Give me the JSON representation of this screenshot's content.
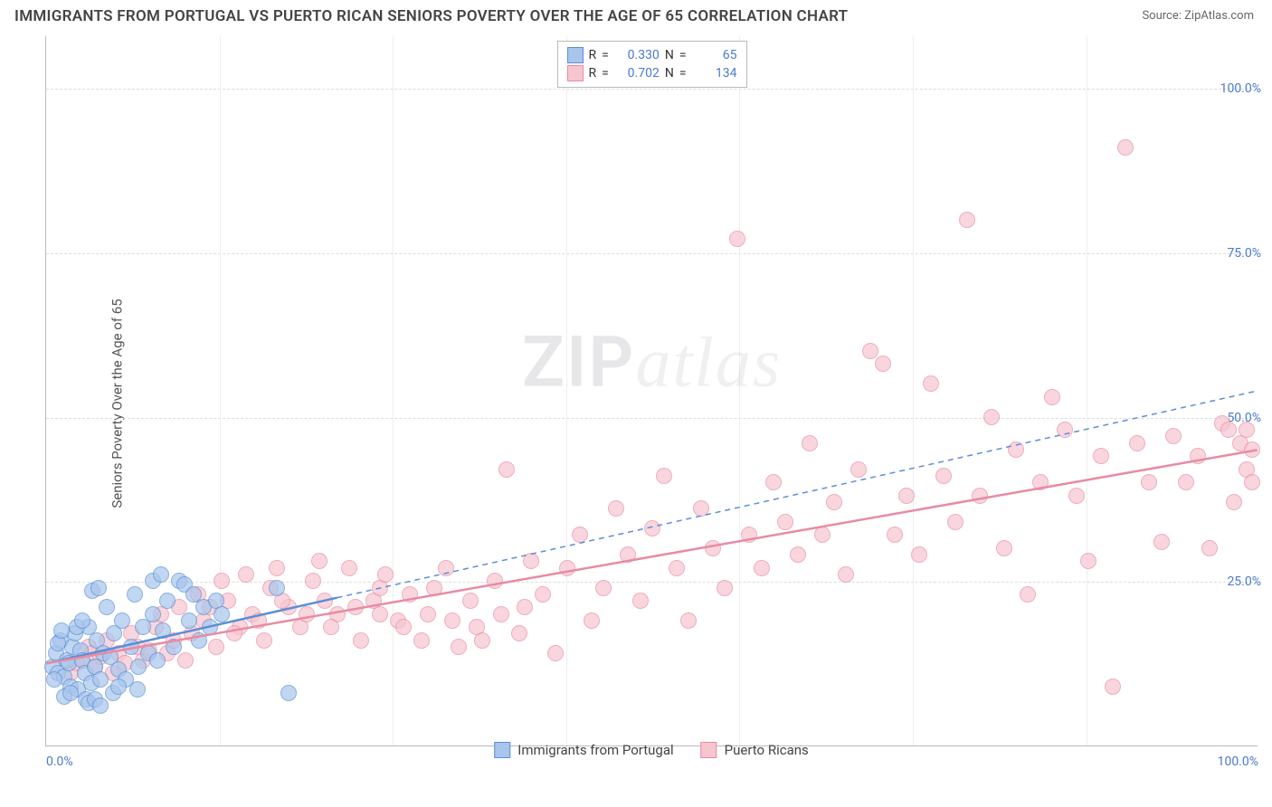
{
  "title": "IMMIGRANTS FROM PORTUGAL VS PUERTO RICAN SENIORS POVERTY OVER THE AGE OF 65 CORRELATION CHART",
  "source_label": "Source:",
  "source_name": "ZipAtlas.com",
  "y_axis_label": "Seniors Poverty Over the Age of 65",
  "watermark_zip": "ZIP",
  "watermark_atlas": "atlas",
  "chart": {
    "type": "scatter",
    "xlim": [
      0,
      100
    ],
    "ylim": [
      0,
      108
    ],
    "y_ticks": [
      25,
      50,
      75,
      100
    ],
    "y_tick_labels": [
      "25.0%",
      "50.0%",
      "75.0%",
      "100.0%"
    ],
    "x_ticks": [
      0,
      100
    ],
    "x_tick_labels": [
      "0.0%",
      "100.0%"
    ],
    "x_gridlines": [
      14.3,
      28.6,
      42.9,
      57.2,
      71.5,
      85.8
    ],
    "background_color": "#ffffff",
    "grid_color": "#dddddd",
    "point_radius": 9,
    "point_border_width": 1.2,
    "point_fill_opacity": 0.35,
    "series": [
      {
        "name": "Immigrants from Portugal",
        "color_fill": "#a8c5ec",
        "color_border": "#5a8fd6",
        "r_value": "0.330",
        "n_value": "65",
        "trend_solid": {
          "x1": 0,
          "y1": 12.5,
          "x2": 24,
          "y2": 22.5
        },
        "trend_dash": {
          "x1": 24,
          "y1": 22.5,
          "x2": 100,
          "y2": 54
        },
        "points": [
          [
            0.5,
            12
          ],
          [
            0.8,
            14
          ],
          [
            1.0,
            11
          ],
          [
            1.2,
            16
          ],
          [
            1.5,
            10.5
          ],
          [
            1.7,
            13
          ],
          [
            1.9,
            12.5
          ],
          [
            2.0,
            9
          ],
          [
            2.2,
            15
          ],
          [
            2.4,
            17
          ],
          [
            2.6,
            8.5
          ],
          [
            2.8,
            14.5
          ],
          [
            3.0,
            13
          ],
          [
            3.2,
            11
          ],
          [
            3.5,
            18
          ],
          [
            3.7,
            9.5
          ],
          [
            4.0,
            12
          ],
          [
            4.2,
            16
          ],
          [
            4.5,
            10
          ],
          [
            4.7,
            14
          ],
          [
            5.0,
            21
          ],
          [
            5.3,
            13.5
          ],
          [
            5.6,
            17
          ],
          [
            6.0,
            11.5
          ],
          [
            6.3,
            19
          ],
          [
            6.6,
            10
          ],
          [
            7.0,
            15
          ],
          [
            7.3,
            23
          ],
          [
            7.6,
            12
          ],
          [
            8.0,
            18
          ],
          [
            8.4,
            14
          ],
          [
            8.8,
            20
          ],
          [
            9.2,
            13
          ],
          [
            9.6,
            17.5
          ],
          [
            10.0,
            22
          ],
          [
            10.5,
            15
          ],
          [
            11.0,
            25
          ],
          [
            11.4,
            24.5
          ],
          [
            11.8,
            19
          ],
          [
            12.2,
            23
          ],
          [
            12.6,
            16
          ],
          [
            13.0,
            21
          ],
          [
            3.3,
            7
          ],
          [
            3.5,
            6.5
          ],
          [
            4.0,
            7
          ],
          [
            4.5,
            6
          ],
          [
            1.5,
            7.5
          ],
          [
            2.0,
            8
          ],
          [
            5.5,
            8
          ],
          [
            6.0,
            9
          ],
          [
            7.5,
            8.5
          ],
          [
            2.5,
            18
          ],
          [
            3.0,
            19
          ],
          [
            3.8,
            23.5
          ],
          [
            4.3,
            24
          ],
          [
            8.8,
            25
          ],
          [
            9.5,
            26
          ],
          [
            13.5,
            18
          ],
          [
            14.0,
            22
          ],
          [
            14.5,
            20
          ],
          [
            19.0,
            24
          ],
          [
            20.0,
            8
          ],
          [
            1.0,
            15.5
          ],
          [
            1.3,
            17.5
          ],
          [
            0.7,
            10
          ]
        ]
      },
      {
        "name": "Puerto Ricans",
        "color_fill": "#f7c5d0",
        "color_border": "#e88ba3",
        "r_value": "0.702",
        "n_value": "134",
        "trend_solid": {
          "x1": 0,
          "y1": 12.5,
          "x2": 100,
          "y2": 45
        },
        "trend_dash": null,
        "points": [
          [
            2,
            11
          ],
          [
            3,
            13
          ],
          [
            3.5,
            15
          ],
          [
            4,
            12
          ],
          [
            5,
            16
          ],
          [
            5.5,
            11
          ],
          [
            6,
            14
          ],
          [
            7,
            17
          ],
          [
            7.5,
            15
          ],
          [
            8,
            13
          ],
          [
            9,
            18
          ],
          [
            9.5,
            20
          ],
          [
            10,
            14
          ],
          [
            11,
            21
          ],
          [
            12,
            17
          ],
          [
            12.5,
            23
          ],
          [
            13,
            19
          ],
          [
            14,
            15
          ],
          [
            14.5,
            25
          ],
          [
            15,
            22
          ],
          [
            16,
            18
          ],
          [
            16.5,
            26
          ],
          [
            17,
            20
          ],
          [
            18,
            16
          ],
          [
            18.5,
            24
          ],
          [
            19,
            27
          ],
          [
            20,
            21
          ],
          [
            21,
            18
          ],
          [
            22,
            25
          ],
          [
            22.5,
            28
          ],
          [
            23,
            22
          ],
          [
            24,
            20
          ],
          [
            25,
            27
          ],
          [
            26,
            16
          ],
          [
            27,
            22
          ],
          [
            27.5,
            24
          ],
          [
            28,
            26
          ],
          [
            29,
            19
          ],
          [
            30,
            23
          ],
          [
            31,
            16
          ],
          [
            32,
            24
          ],
          [
            33,
            27
          ],
          [
            34,
            15
          ],
          [
            35,
            22
          ],
          [
            36,
            16
          ],
          [
            37,
            25
          ],
          [
            38,
            42
          ],
          [
            39,
            17
          ],
          [
            40,
            28
          ],
          [
            41,
            23
          ],
          [
            42,
            14
          ],
          [
            43,
            27
          ],
          [
            44,
            32
          ],
          [
            45,
            19
          ],
          [
            46,
            24
          ],
          [
            47,
            36
          ],
          [
            48,
            29
          ],
          [
            49,
            22
          ],
          [
            50,
            33
          ],
          [
            51,
            41
          ],
          [
            52,
            27
          ],
          [
            53,
            19
          ],
          [
            54,
            36
          ],
          [
            55,
            30
          ],
          [
            56,
            24
          ],
          [
            57,
            77
          ],
          [
            58,
            32
          ],
          [
            59,
            27
          ],
          [
            60,
            40
          ],
          [
            61,
            34
          ],
          [
            62,
            29
          ],
          [
            63,
            46
          ],
          [
            64,
            32
          ],
          [
            65,
            37
          ],
          [
            66,
            26
          ],
          [
            67,
            42
          ],
          [
            68,
            60
          ],
          [
            69,
            58
          ],
          [
            70,
            32
          ],
          [
            71,
            38
          ],
          [
            72,
            29
          ],
          [
            73,
            55
          ],
          [
            74,
            41
          ],
          [
            75,
            34
          ],
          [
            76,
            80
          ],
          [
            77,
            38
          ],
          [
            78,
            50
          ],
          [
            79,
            30
          ],
          [
            80,
            45
          ],
          [
            81,
            23
          ],
          [
            82,
            40
          ],
          [
            83,
            53
          ],
          [
            84,
            48
          ],
          [
            85,
            38
          ],
          [
            86,
            28
          ],
          [
            87,
            44
          ],
          [
            88,
            9
          ],
          [
            89,
            91
          ],
          [
            90,
            46
          ],
          [
            91,
            40
          ],
          [
            92,
            31
          ],
          [
            93,
            47
          ],
          [
            94,
            40
          ],
          [
            95,
            44
          ],
          [
            96,
            30
          ],
          [
            97,
            49
          ],
          [
            97.5,
            48
          ],
          [
            98,
            37
          ],
          [
            98.5,
            46
          ],
          [
            99,
            42
          ],
          [
            99,
            48
          ],
          [
            99.5,
            40
          ],
          [
            99.5,
            45
          ],
          [
            2.5,
            12.5
          ],
          [
            3.8,
            14
          ],
          [
            4.5,
            13.5
          ],
          [
            6.5,
            12.5
          ],
          [
            8.5,
            14.5
          ],
          [
            10.5,
            16
          ],
          [
            11.5,
            13
          ],
          [
            13.5,
            21
          ],
          [
            15.5,
            17
          ],
          [
            17.5,
            19
          ],
          [
            19.5,
            22
          ],
          [
            21.5,
            20
          ],
          [
            23.5,
            18
          ],
          [
            25.5,
            21
          ],
          [
            27.5,
            20
          ],
          [
            29.5,
            18
          ],
          [
            31.5,
            20
          ],
          [
            33.5,
            19
          ],
          [
            35.5,
            18
          ],
          [
            37.5,
            20
          ],
          [
            39.5,
            21
          ]
        ]
      }
    ]
  },
  "legend": {
    "r_label": "R",
    "n_label": "N",
    "eq": "="
  }
}
